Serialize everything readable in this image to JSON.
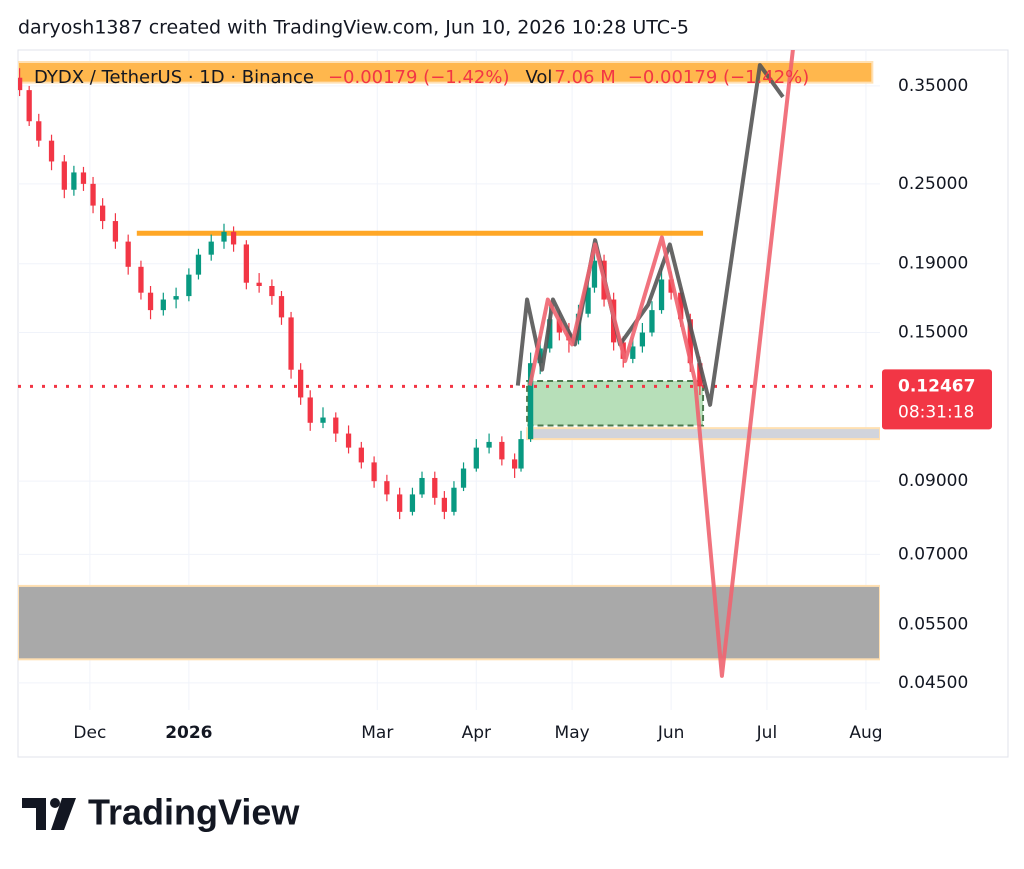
{
  "chart_data": {
    "type": "candlestick",
    "title": "daryosh1387 created with TradingView.com, Jun 10, 2026 10:28 UTC-5",
    "legend": {
      "symbol": "DYDX / TetherUS · 1D · Binance",
      "change": "−0.00179 (−1.42%)",
      "vol_label": "Vol",
      "volume": "7.06 M",
      "vol_change": "−0.00179 (−1.42%)"
    },
    "brand": "TradingView",
    "log_scale": true,
    "grid": true,
    "up_color": "#089981",
    "down_color": "#f23645",
    "xlim": [
      -22.5,
      247.4
    ],
    "xticks": [
      {
        "value": 0,
        "label": "Dec"
      },
      {
        "value": 31,
        "label": "2026"
      },
      {
        "value": 90,
        "label": "Mar"
      },
      {
        "value": 121,
        "label": "Apr"
      },
      {
        "value": 151,
        "label": "May"
      },
      {
        "value": 182,
        "label": "Jun"
      },
      {
        "value": 212,
        "label": "Jul"
      },
      {
        "value": 243,
        "label": "Aug"
      }
    ],
    "ylim": [
      0.041,
      0.38
    ],
    "yticks": [
      {
        "value": 0.35,
        "label": "0.35000"
      },
      {
        "value": 0.25,
        "label": "0.25000"
      },
      {
        "value": 0.19,
        "label": "0.19000"
      },
      {
        "value": 0.15,
        "label": "0.15000"
      },
      {
        "value": 0.09,
        "label": "0.09000"
      },
      {
        "value": 0.07,
        "label": "0.07000"
      },
      {
        "value": 0.055,
        "label": "0.05500"
      },
      {
        "value": 0.045,
        "label": "0.04500"
      }
    ],
    "last_price": 0.12467,
    "countdown": "08:31:18",
    "candles": [
      [
        -22,
        0.36,
        0.372,
        0.338,
        0.345
      ],
      [
        -19,
        0.345,
        0.35,
        0.305,
        0.31
      ],
      [
        -16,
        0.31,
        0.318,
        0.284,
        0.29
      ],
      [
        -12,
        0.29,
        0.296,
        0.262,
        0.27
      ],
      [
        -8,
        0.27,
        0.276,
        0.238,
        0.245
      ],
      [
        -5,
        0.245,
        0.266,
        0.24,
        0.26
      ],
      [
        -2,
        0.26,
        0.265,
        0.244,
        0.25
      ],
      [
        1,
        0.25,
        0.256,
        0.226,
        0.232
      ],
      [
        4,
        0.232,
        0.238,
        0.214,
        0.22
      ],
      [
        8,
        0.22,
        0.226,
        0.2,
        0.205
      ],
      [
        12,
        0.205,
        0.21,
        0.183,
        0.188
      ],
      [
        16,
        0.188,
        0.192,
        0.168,
        0.172
      ],
      [
        19,
        0.172,
        0.176,
        0.157,
        0.162
      ],
      [
        23,
        0.162,
        0.172,
        0.159,
        0.168
      ],
      [
        27,
        0.168,
        0.175,
        0.163,
        0.17
      ],
      [
        31,
        0.17,
        0.187,
        0.167,
        0.183
      ],
      [
        34,
        0.183,
        0.2,
        0.18,
        0.196
      ],
      [
        38,
        0.196,
        0.21,
        0.192,
        0.205
      ],
      [
        42,
        0.205,
        0.218,
        0.2,
        0.212
      ],
      [
        45,
        0.212,
        0.216,
        0.198,
        0.203
      ],
      [
        49,
        0.203,
        0.206,
        0.174,
        0.178
      ],
      [
        53,
        0.178,
        0.184,
        0.172,
        0.176
      ],
      [
        57,
        0.176,
        0.18,
        0.165,
        0.17
      ],
      [
        60,
        0.17,
        0.173,
        0.154,
        0.158
      ],
      [
        63,
        0.158,
        0.161,
        0.128,
        0.132
      ],
      [
        66,
        0.132,
        0.135,
        0.117,
        0.12
      ],
      [
        69,
        0.12,
        0.123,
        0.107,
        0.11
      ],
      [
        73,
        0.11,
        0.116,
        0.108,
        0.112
      ],
      [
        77,
        0.112,
        0.114,
        0.103,
        0.106
      ],
      [
        81,
        0.106,
        0.109,
        0.099,
        0.101
      ],
      [
        85,
        0.101,
        0.103,
        0.094,
        0.096
      ],
      [
        89,
        0.096,
        0.098,
        0.088,
        0.09
      ],
      [
        93,
        0.09,
        0.092,
        0.084,
        0.086
      ],
      [
        97,
        0.086,
        0.088,
        0.079,
        0.081
      ],
      [
        101,
        0.081,
        0.088,
        0.08,
        0.086
      ],
      [
        104,
        0.086,
        0.093,
        0.085,
        0.091
      ],
      [
        108,
        0.091,
        0.093,
        0.083,
        0.085
      ],
      [
        111,
        0.085,
        0.087,
        0.079,
        0.081
      ],
      [
        114,
        0.081,
        0.09,
        0.08,
        0.088
      ],
      [
        117,
        0.088,
        0.096,
        0.087,
        0.094
      ],
      [
        121,
        0.094,
        0.104,
        0.093,
        0.101
      ],
      [
        125,
        0.101,
        0.106,
        0.099,
        0.103
      ],
      [
        129,
        0.103,
        0.105,
        0.095,
        0.097
      ],
      [
        133,
        0.097,
        0.099,
        0.091,
        0.094
      ],
      [
        135,
        0.094,
        0.107,
        0.093,
        0.104
      ],
      [
        138,
        0.104,
        0.14,
        0.103,
        0.135
      ],
      [
        141,
        0.135,
        0.148,
        0.13,
        0.142
      ],
      [
        144,
        0.142,
        0.165,
        0.14,
        0.157
      ],
      [
        147,
        0.157,
        0.162,
        0.146,
        0.15
      ],
      [
        150,
        0.15,
        0.155,
        0.14,
        0.146
      ],
      [
        153,
        0.146,
        0.165,
        0.144,
        0.16
      ],
      [
        156,
        0.16,
        0.18,
        0.158,
        0.175
      ],
      [
        158,
        0.175,
        0.2,
        0.172,
        0.192
      ],
      [
        161,
        0.192,
        0.196,
        0.164,
        0.168
      ],
      [
        164,
        0.168,
        0.172,
        0.141,
        0.145
      ],
      [
        167,
        0.145,
        0.148,
        0.133,
        0.137
      ],
      [
        170,
        0.137,
        0.147,
        0.135,
        0.143
      ],
      [
        173,
        0.143,
        0.155,
        0.14,
        0.15
      ],
      [
        176,
        0.15,
        0.167,
        0.148,
        0.162
      ],
      [
        179,
        0.162,
        0.19,
        0.16,
        0.18
      ],
      [
        182,
        0.18,
        0.185,
        0.168,
        0.172
      ],
      [
        185,
        0.172,
        0.175,
        0.153,
        0.157
      ],
      [
        188,
        0.157,
        0.16,
        0.131,
        0.135
      ],
      [
        191,
        0.135,
        0.138,
        0.121,
        0.12467
      ]
    ],
    "zones": [
      {
        "x": [
          -22.5,
          245.0
        ],
        "y": [
          0.38,
          0.354
        ],
        "color": "#ffb74d",
        "border": "#ffe0b2"
      },
      {
        "x": [
          136.9,
          192.0
        ],
        "y": [
          0.127,
          0.109
        ],
        "color": "#b7dfb9",
        "border": "#4c7a4e"
      },
      {
        "x": [
          136.9,
          247.4
        ],
        "y": [
          0.108,
          0.104
        ],
        "color": "#d1d4dc",
        "border": "#ffe0b2"
      },
      {
        "x": [
          -22.5,
          247.4
        ],
        "y": [
          0.0628,
          0.0488
        ],
        "color": "#a9a9a9",
        "border": "#ffe0b2"
      }
    ],
    "levels": [
      {
        "x": [
          14.7,
          192.0
        ],
        "y": 0.211,
        "color": "#ff9800"
      }
    ],
    "paths": [
      {
        "color": "#555555",
        "x": [
          134.0,
          136.9,
          141.6,
          145.0,
          151.9,
          158.2,
          166.0,
          174.8,
          181.6,
          194.2,
          209.8,
          217.0
        ],
        "y": [
          0.125,
          0.168,
          0.132,
          0.168,
          0.144,
          0.206,
          0.144,
          0.165,
          0.203,
          0.117,
          0.376,
          0.337
        ]
      },
      {
        "color": "#f06470",
        "x": [
          137.8,
          143.4,
          151.0,
          158.2,
          167.6,
          179.1,
          189.5,
          197.9,
          220.2
        ],
        "y": [
          0.125,
          0.168,
          0.144,
          0.203,
          0.136,
          0.208,
          0.127,
          0.0461,
          0.399
        ]
      }
    ]
  }
}
